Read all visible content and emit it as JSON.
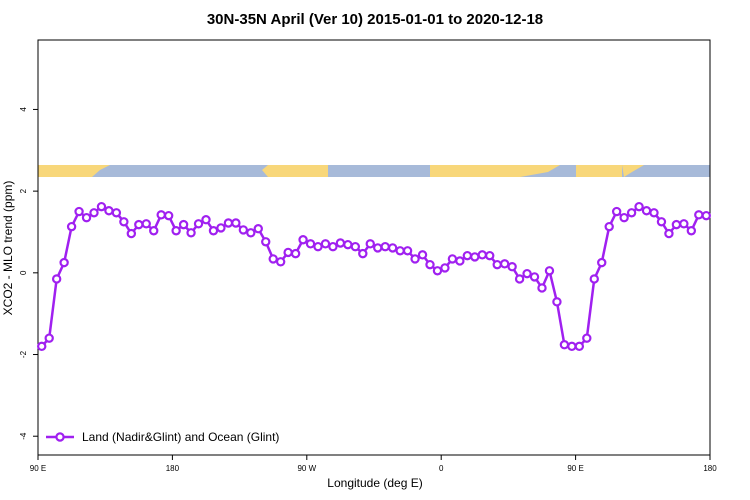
{
  "chart_data": {
    "type": "line",
    "title": "30N-35N April (Ver 10)   2015-01-01 to 2020-12-18",
    "x_label": "Longitude (deg E)",
    "y_label": "XCO2 - MLO trend (ppm)",
    "xlim": [
      90,
      540
    ],
    "ylim": [
      -4.46,
      5.7
    ],
    "xticks": [
      {
        "value": 90,
        "label": "90 E"
      },
      {
        "value": 180,
        "label": "180"
      },
      {
        "value": 270,
        "label": "90 W"
      },
      {
        "value": 360,
        "label": "0"
      },
      {
        "value": 450,
        "label": "90 E"
      },
      {
        "value": 540,
        "label": "180"
      }
    ],
    "yticks": [
      -4,
      -2,
      0,
      2,
      4
    ],
    "legend": "bottom-left",
    "x": [
      92.5,
      97.5,
      102.5,
      107.5,
      112.5,
      117.5,
      122.5,
      127.5,
      132.5,
      137.5,
      142.5,
      147.5,
      152.5,
      157.5,
      162.5,
      167.5,
      172.5,
      177.5,
      182.5,
      187.5,
      192.5,
      197.5,
      202.5,
      207.5,
      212.5,
      217.5,
      222.5,
      227.5,
      232.5,
      237.5,
      242.5,
      247.5,
      252.5,
      257.5,
      262.5,
      267.5,
      272.5,
      277.5,
      282.5,
      287.5,
      292.5,
      297.5,
      302.5,
      307.5,
      312.5,
      317.5,
      322.5,
      327.5,
      332.5,
      337.5,
      342.5,
      347.5,
      352.5,
      357.5,
      362.5,
      367.5,
      372.5,
      377.5,
      382.5,
      387.5,
      392.5,
      397.5,
      402.5,
      407.5,
      412.5,
      417.5,
      422.5,
      427.5,
      432.5,
      437.5,
      442.5,
      447.5,
      452.5,
      457.5,
      462.5,
      467.5,
      472.5,
      477.5,
      482.5,
      487.5,
      492.5,
      497.5,
      502.5,
      507.5,
      512.5,
      517.5,
      522.5,
      527.5,
      532.5,
      537.5
    ],
    "series": [
      {
        "name": "Land (Nadir&Glint) and Ocean (Glint)",
        "color": "#a020f0",
        "values": [
          -1.8,
          -1.6,
          -0.15,
          0.25,
          1.13,
          1.5,
          1.35,
          1.47,
          1.62,
          1.52,
          1.47,
          1.25,
          0.96,
          1.18,
          1.2,
          1.03,
          1.42,
          1.4,
          1.03,
          1.18,
          0.98,
          1.2,
          1.3,
          1.03,
          1.1,
          1.22,
          1.22,
          1.05,
          0.98,
          1.08,
          0.76,
          0.34,
          0.27,
          0.5,
          0.47,
          0.81,
          0.71,
          0.64,
          0.71,
          0.64,
          0.73,
          0.69,
          0.64,
          0.47,
          0.71,
          0.61,
          0.64,
          0.61,
          0.54,
          0.54,
          0.34,
          0.44,
          0.2,
          0.05,
          0.12,
          0.34,
          0.29,
          0.42,
          0.39,
          0.44,
          0.42,
          0.2,
          0.22,
          0.15,
          -0.15,
          -0.02,
          -0.1,
          -0.37,
          0.05,
          -0.71,
          -1.76,
          -1.8,
          -1.8,
          -1.6,
          -0.15,
          0.25,
          1.13,
          1.5,
          1.35,
          1.47,
          1.62,
          1.52,
          1.47,
          1.25,
          0.96,
          1.18,
          1.2,
          1.03,
          1.42,
          1.4
        ]
      }
    ]
  }
}
